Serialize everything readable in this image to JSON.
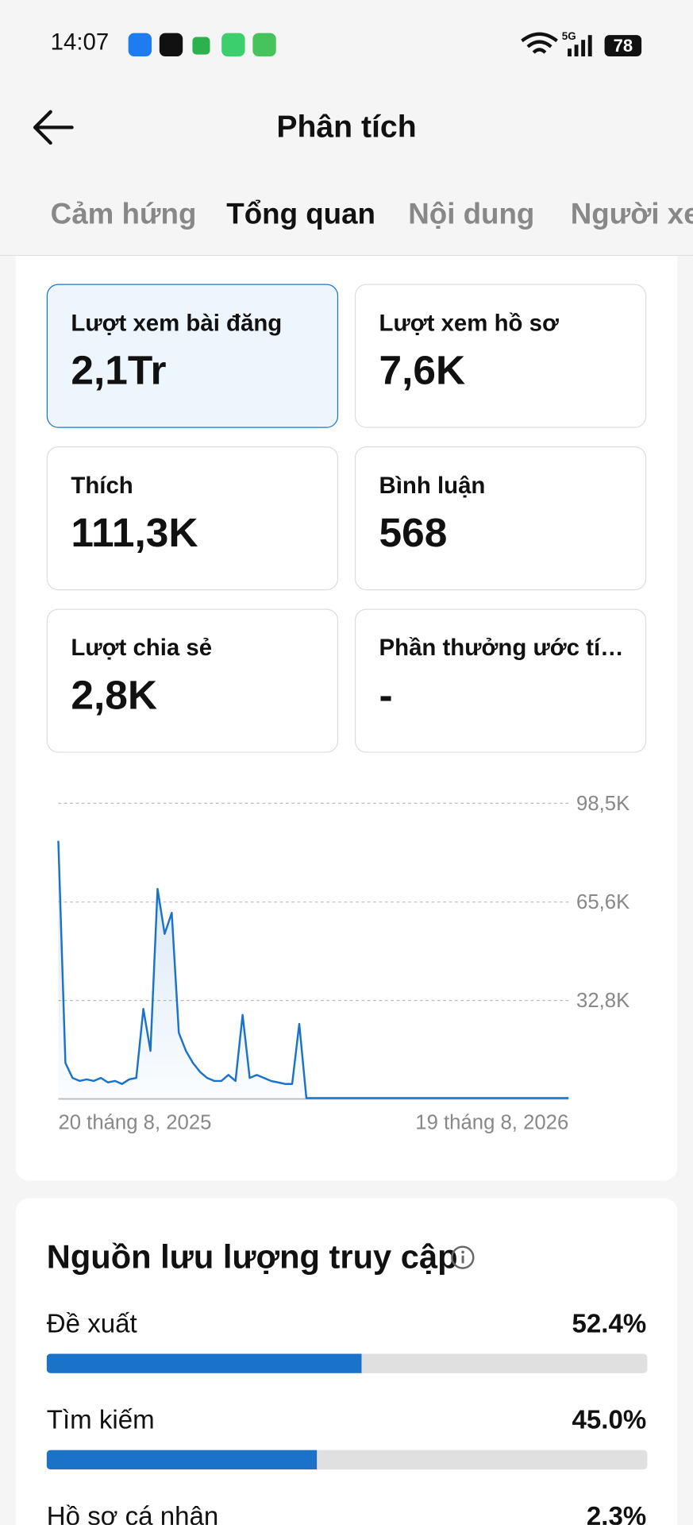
{
  "status_bar": {
    "time": "14:07",
    "network": "5G",
    "battery": "78"
  },
  "header": {
    "title": "Phân tích"
  },
  "tabs": [
    "Cảm hứng",
    "Tổng quan",
    "Nội dung",
    "Người xe"
  ],
  "active_tab": 1,
  "cards": [
    {
      "label": "Lượt xem bài đăng",
      "value": "2,1Tr"
    },
    {
      "label": "Lượt xem hồ sơ",
      "value": "7,6K"
    },
    {
      "label": "Thích",
      "value": "111,3K"
    },
    {
      "label": "Bình luận",
      "value": "568"
    },
    {
      "label": "Lượt chia sẻ",
      "value": "2,8K"
    },
    {
      "label": "Phần thưởng ước tí…",
      "value": "-"
    }
  ],
  "chart_data": {
    "type": "line",
    "color": "#1a73c8",
    "grid": true,
    "ylim": [
      0,
      98.5
    ],
    "yticks": [
      {
        "value": 32.8,
        "label": "32,8K"
      },
      {
        "value": 65.6,
        "label": "65,6K"
      },
      {
        "value": 98.5,
        "label": "98,5K"
      }
    ],
    "categories": [
      "20 tháng 8, 2025",
      null,
      null,
      null,
      null,
      null,
      null,
      null,
      null,
      null,
      null,
      null,
      null,
      null,
      null,
      null,
      null,
      null,
      null,
      null,
      null,
      null,
      null,
      null,
      null,
      null,
      null,
      null,
      null,
      null,
      null,
      null,
      null,
      null,
      null,
      null,
      null,
      null,
      null,
      null,
      null,
      null,
      null,
      null,
      null,
      null,
      null,
      null,
      null,
      null,
      null,
      null,
      null,
      null,
      null,
      null,
      null,
      null,
      null,
      null,
      null,
      null,
      null,
      null,
      null,
      null,
      null,
      null,
      null,
      null,
      null,
      null,
      "19 tháng 8, 2026"
    ],
    "values": [
      86,
      12,
      7,
      6,
      6.5,
      6,
      7,
      5.5,
      6,
      5,
      6.5,
      7,
      30,
      16,
      70,
      55,
      62,
      22,
      16,
      12,
      9,
      7,
      6,
      6,
      8,
      6,
      28,
      7,
      8,
      7,
      6,
      5.5,
      5,
      5,
      25,
      0.3,
      0.3,
      0.3,
      0.3,
      0.3,
      0.3,
      0.3,
      0.3,
      0.3,
      0.3,
      0.3,
      0.3,
      0.3,
      0.3,
      0.3,
      0.3,
      0.3,
      0.3,
      0.3,
      0.3,
      0.3,
      0.3,
      0.3,
      0.3,
      0.3,
      0.3,
      0.3,
      0.3,
      0.3,
      0.3,
      0.3,
      0.3,
      0.3,
      0.3,
      0.3,
      0.3,
      0.3,
      0.3
    ]
  },
  "traffic": {
    "title": "Nguồn lưu lượng truy cập",
    "rows": [
      {
        "name": "Đề xuất",
        "value": 52.4,
        "value_label": "52.4%"
      },
      {
        "name": "Tìm kiếm",
        "value": 45.0,
        "value_label": "45.0%"
      },
      {
        "name": "Hồ sơ cá nhân",
        "value": 2.3,
        "value_label": "2.3%"
      }
    ]
  }
}
